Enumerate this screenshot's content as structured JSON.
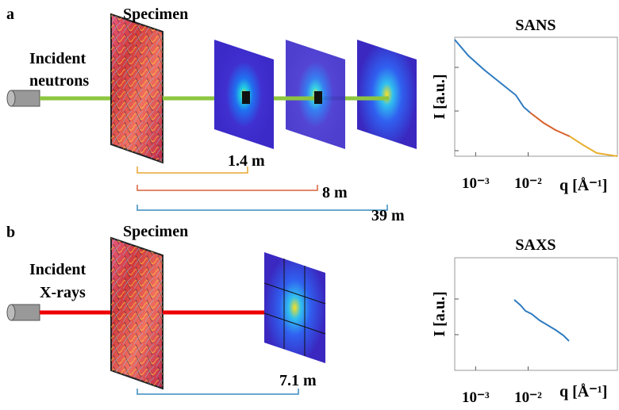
{
  "panels": [
    {
      "label": "a",
      "specimen": "Specimen",
      "source": [
        "Incident",
        "neutrons"
      ],
      "distances": [
        "1.4 m",
        "8 m",
        "39 m"
      ],
      "plot": {
        "title": "SANS",
        "y_label": "I [a.u.]",
        "x_label": "q [Å⁻¹]",
        "x_log": true,
        "xlim": [
          0.0004,
          0.5
        ],
        "xticks": [
          {
            "value": 0.001,
            "label": "10⁻³"
          },
          {
            "value": 0.01,
            "label": "10⁻²"
          }
        ]
      }
    },
    {
      "label": "b",
      "specimen": "Specimen",
      "source": [
        "Incident",
        "X-rays"
      ],
      "distances": [
        "7.1 m"
      ],
      "plot": {
        "title": "SAXS",
        "y_label": "I [a.u.]",
        "x_label": "q [Å⁻¹]",
        "x_log": true,
        "xlim": [
          0.0004,
          0.5
        ],
        "xticks": [
          {
            "value": 0.001,
            "label": "10⁻³"
          },
          {
            "value": 0.01,
            "label": "10⁻²"
          }
        ]
      }
    }
  ]
}
